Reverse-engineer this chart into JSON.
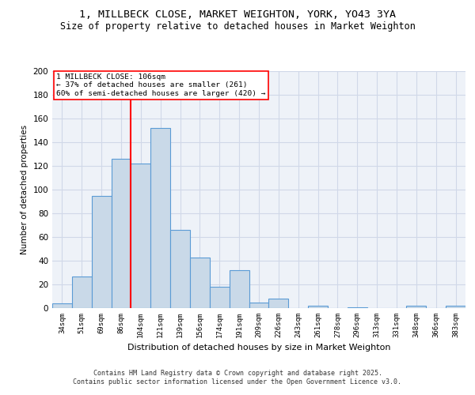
{
  "title1": "1, MILLBECK CLOSE, MARKET WEIGHTON, YORK, YO43 3YA",
  "title2": "Size of property relative to detached houses in Market Weighton",
  "xlabel": "Distribution of detached houses by size in Market Weighton",
  "ylabel": "Number of detached properties",
  "categories": [
    "34sqm",
    "51sqm",
    "69sqm",
    "86sqm",
    "104sqm",
    "121sqm",
    "139sqm",
    "156sqm",
    "174sqm",
    "191sqm",
    "209sqm",
    "226sqm",
    "243sqm",
    "261sqm",
    "278sqm",
    "296sqm",
    "313sqm",
    "331sqm",
    "348sqm",
    "366sqm",
    "383sqm"
  ],
  "values": [
    4,
    27,
    95,
    126,
    122,
    152,
    66,
    43,
    18,
    32,
    5,
    8,
    0,
    2,
    0,
    1,
    0,
    0,
    2,
    0,
    2
  ],
  "bar_color": "#c9d9e8",
  "bar_edge_color": "#5b9bd5",
  "grid_color": "#d0d8e8",
  "background_color": "#eef2f8",
  "vline_index": 4,
  "vline_color": "red",
  "annotation_text": "1 MILLBECK CLOSE: 106sqm\n← 37% of detached houses are smaller (261)\n60% of semi-detached houses are larger (420) →",
  "footer1": "Contains HM Land Registry data © Crown copyright and database right 2025.",
  "footer2": "Contains public sector information licensed under the Open Government Licence v3.0.",
  "ylim": [
    0,
    200
  ],
  "yticks": [
    0,
    20,
    40,
    60,
    80,
    100,
    120,
    140,
    160,
    180,
    200
  ]
}
